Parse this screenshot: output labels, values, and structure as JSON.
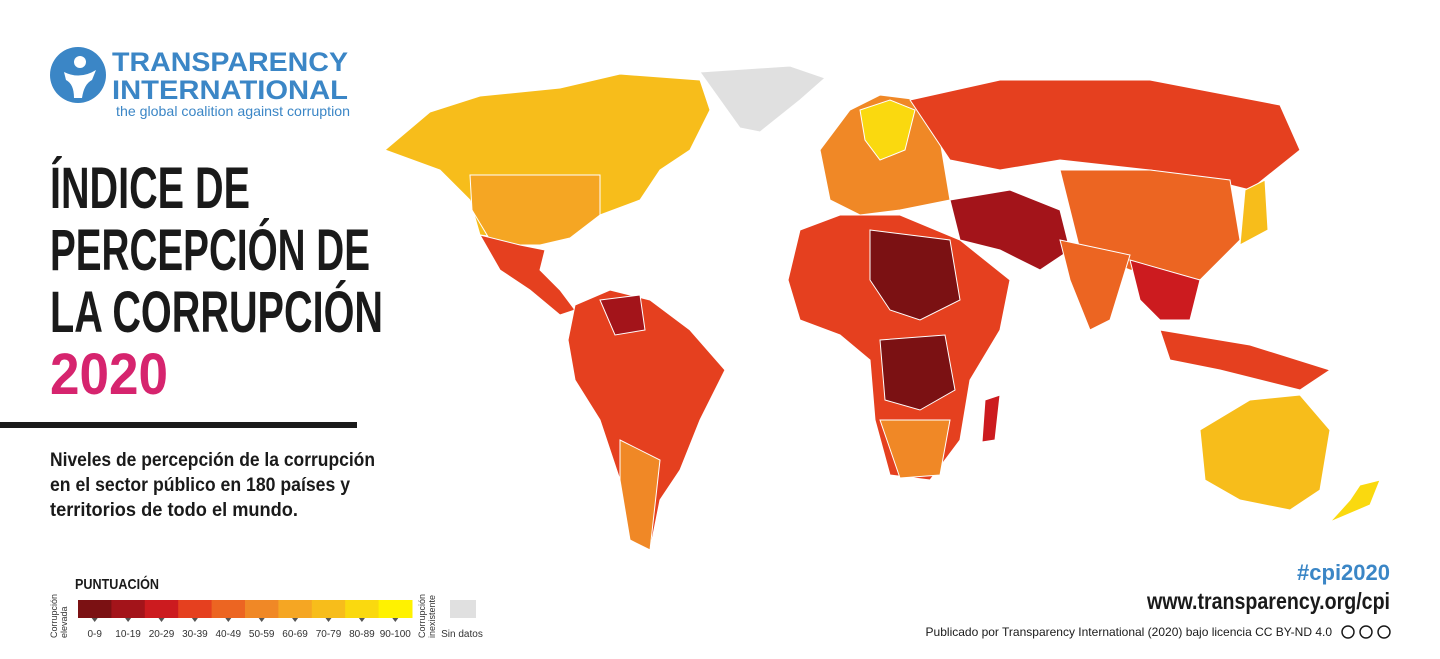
{
  "logo": {
    "name_line1": "TRANSPARENCY",
    "name_line2": "INTERNATIONAL",
    "tagline": "the global coalition against corruption"
  },
  "title": {
    "lines": [
      "ÍNDICE DE",
      "PERCEPCIÓN DE",
      "LA CORRUPCIÓN"
    ],
    "year": "2020"
  },
  "description": [
    "Niveles de percepción de la corrupción",
    "en el sector público en 180 países y",
    "territorios de todo el mundo."
  ],
  "legend": {
    "title": "PUNTUACIÓN",
    "low_label": [
      "Corrupción",
      "elevada"
    ],
    "high_label": [
      "Corrupción",
      "inexistente"
    ],
    "bins": [
      {
        "label": "0-9",
        "color": "#7b1113"
      },
      {
        "label": "10-19",
        "color": "#a3141a"
      },
      {
        "label": "20-29",
        "color": "#cc1b1f"
      },
      {
        "label": "30-39",
        "color": "#e5401f"
      },
      {
        "label": "40-49",
        "color": "#ec6522"
      },
      {
        "label": "50-59",
        "color": "#f08826"
      },
      {
        "label": "60-69",
        "color": "#f5a623"
      },
      {
        "label": "70-79",
        "color": "#f7bd1b"
      },
      {
        "label": "80-89",
        "color": "#fad90f"
      },
      {
        "label": "90-100",
        "color": "#fff200"
      }
    ],
    "no_data": {
      "label": "Sin datos",
      "color": "#e0e0e0"
    }
  },
  "footer": {
    "hashtag": "#cpi2020",
    "url": "www.transparency.org/cpi",
    "license": "Publicado por Transparency International (2020) bajo licencia CC BY-ND 4.0"
  }
}
